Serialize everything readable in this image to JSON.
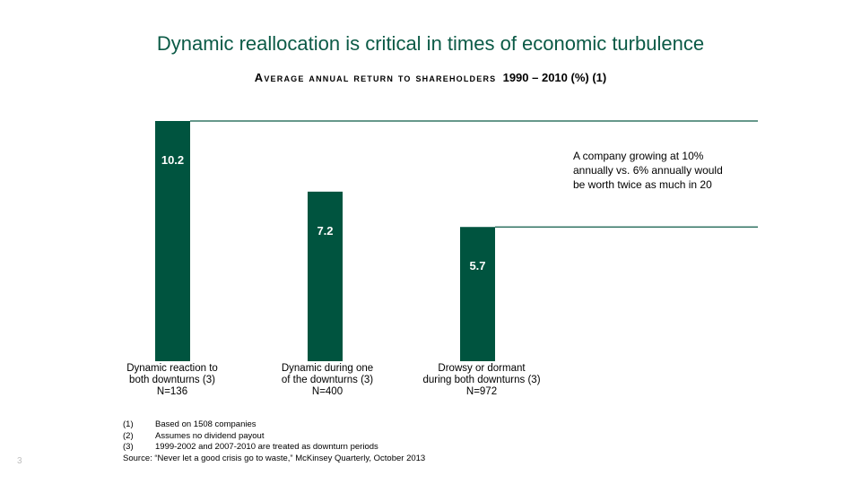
{
  "title": "Dynamic reallocation is critical in times of economic turbulence",
  "subtitle": {
    "smallcaps": "Average annual return to shareholders",
    "rest": "1990 – 2010 (%) (1)"
  },
  "colors": {
    "bar": "#00543f",
    "title": "#0b5a46",
    "guide_line": "#0b5a46"
  },
  "chart_data": {
    "type": "bar",
    "categories": [
      "Dynamic reaction to both downturns (3)",
      "Dynamic during one of the downturns (3)",
      "Drowsy or dormant during both downturns (3)"
    ],
    "sample_sizes": [
      "N=136",
      "N=400",
      "N=972"
    ],
    "values": [
      10.2,
      7.2,
      5.7
    ],
    "data_labels": [
      "10.2",
      "7.2",
      "5.7"
    ],
    "ylim": [
      0,
      10.2
    ],
    "reference_lines": [
      10.2,
      5.7
    ],
    "grid": false,
    "legend": "none"
  },
  "category_labels": [
    {
      "line1": "Dynamic reaction to",
      "line2": "both downturns (3)",
      "line3": "N=136"
    },
    {
      "line1": "Dynamic during one",
      "line2": "of the downturns (3)",
      "line3": "N=400"
    },
    {
      "line1": "Drowsy or dormant",
      "line2": "during both downturns (3)",
      "line3": "N=972"
    }
  ],
  "annotation": {
    "line1": "A company growing at 10%",
    "line2": "annually vs. 6% annually would",
    "line3": "be worth twice as much in 20"
  },
  "footnotes": [
    {
      "num": "(1)",
      "text": "Based on 1508 companies"
    },
    {
      "num": "(2)",
      "text": "Assumes no dividend payout"
    },
    {
      "num": "(3)",
      "text": "1999-2002 and 2007-2010 are treated as downturn periods"
    }
  ],
  "source": "Source: “Never let a good crisis go to waste,” McKinsey Quarterly, October 2013",
  "page_number": "3"
}
